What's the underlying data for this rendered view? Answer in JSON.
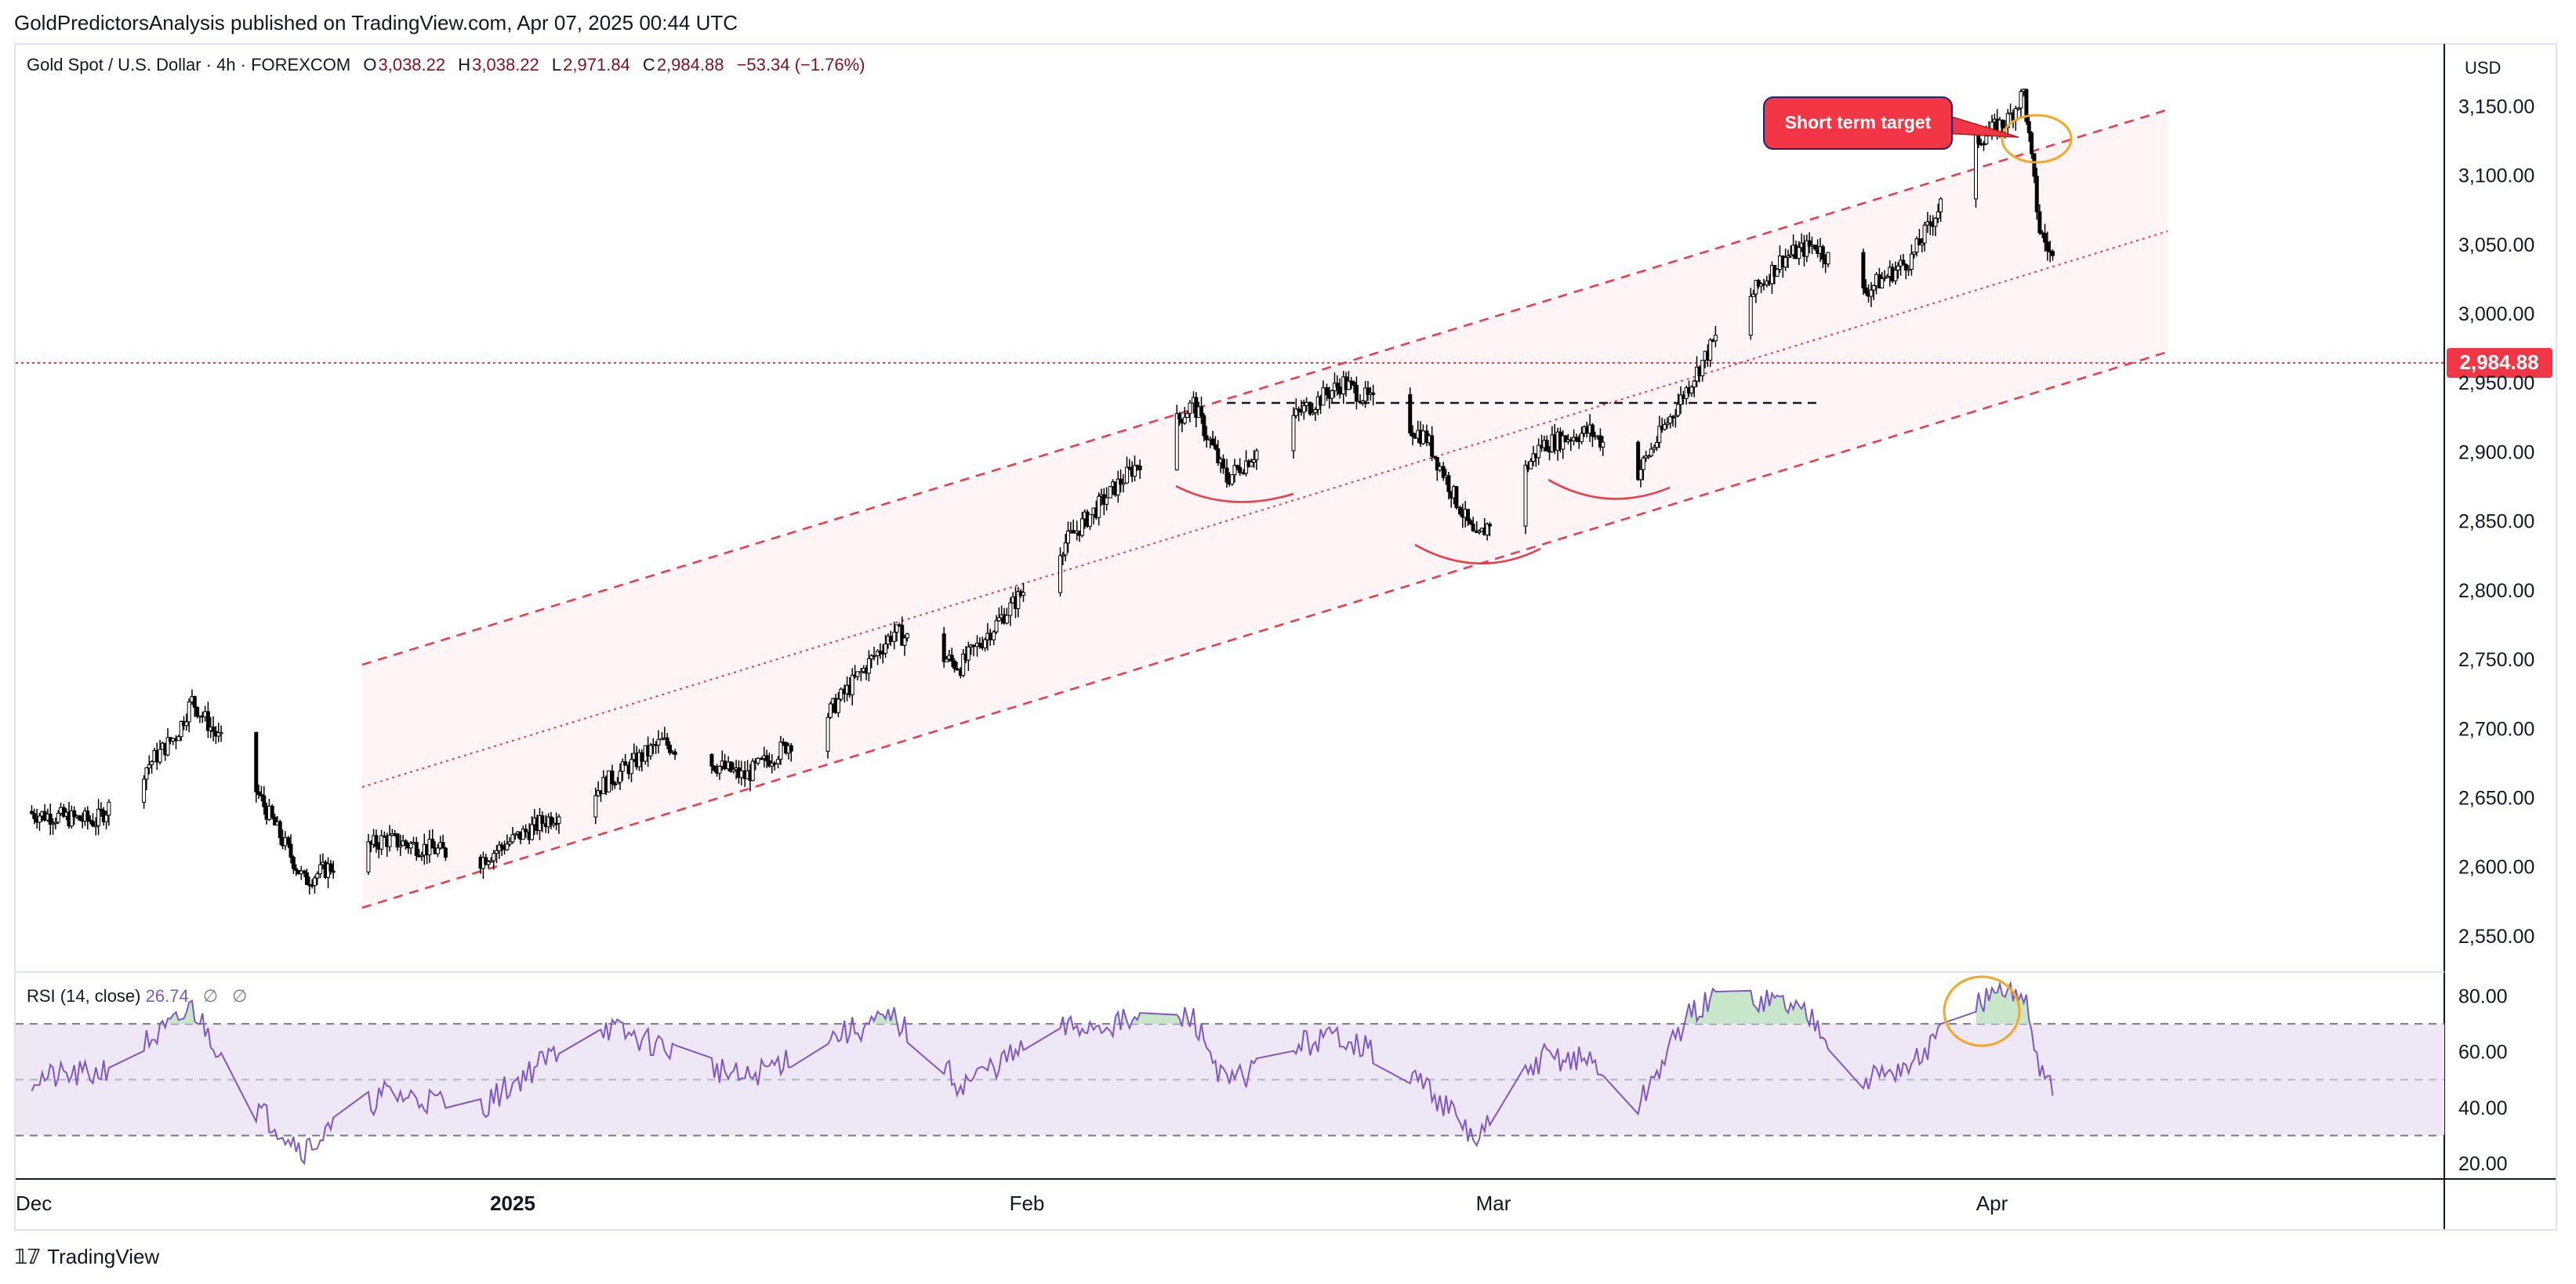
{
  "publisher": "GoldPredictorsAnalysis published on TradingView.com, Apr 07, 2025 00:44 UTC",
  "brand": "TradingView",
  "legend": {
    "symbol": "Gold Spot / U.S. Dollar · 4h · FOREXCOM",
    "open_label": "O",
    "open": "3,038.22",
    "high_label": "H",
    "high": "3,038.22",
    "low_label": "L",
    "low": "2,971.84",
    "close_label": "C",
    "close": "2,984.88",
    "change": "−53.34 (−1.76%)"
  },
  "currency": "USD",
  "rsi_legend": {
    "label": "RSI (14, close)",
    "value": "26.74",
    "na1": "∅",
    "na2": "∅"
  },
  "colors": {
    "accent_red": "#f23645",
    "candle": "#000000",
    "rsi_line": "#7e57c2",
    "rsi_band": "#ede7f6",
    "rsi_overbought_fill": "#c8e6c9",
    "highlight_circle": "#f5a623",
    "channel_fill": "#fff5f6"
  },
  "chart_data": [
    {
      "type": "candlestick",
      "title": "Gold Spot / U.S. Dollar · 4h · FOREXCOM",
      "ylabel": "USD",
      "ylim": [
        2525,
        3195
      ],
      "y_ticks": [
        "3,150.00",
        "3,100.00",
        "3,050.00",
        "3,000.00",
        "2,950.00",
        "2,900.00",
        "2,850.00",
        "2,800.00",
        "2,750.00",
        "2,700.00",
        "2,650.00",
        "2,600.00",
        "2,550.00"
      ],
      "x_ticks": [
        "Dec",
        "2025",
        "Feb",
        "Mar",
        "Apr"
      ],
      "last_price_label": "2,984.88",
      "annotations": [
        "Short term target"
      ],
      "approx_close_path": [
        {
          "date": "2024-12-01",
          "close": 2640
        },
        {
          "date": "2024-12-06",
          "close": 2633
        },
        {
          "date": "2024-12-11",
          "close": 2695
        },
        {
          "date": "2024-12-12",
          "close": 2720
        },
        {
          "date": "2024-12-16",
          "close": 2655
        },
        {
          "date": "2024-12-19",
          "close": 2590
        },
        {
          "date": "2024-12-24",
          "close": 2620
        },
        {
          "date": "2024-12-30",
          "close": 2605
        },
        {
          "date": "2025-01-06",
          "close": 2655
        },
        {
          "date": "2025-01-10",
          "close": 2690
        },
        {
          "date": "2025-01-15",
          "close": 2665
        },
        {
          "date": "2025-01-20",
          "close": 2710
        },
        {
          "date": "2025-01-24",
          "close": 2770
        },
        {
          "date": "2025-01-28",
          "close": 2745
        },
        {
          "date": "2025-02-03",
          "close": 2830
        },
        {
          "date": "2025-02-06",
          "close": 2870
        },
        {
          "date": "2025-02-11",
          "close": 2935
        },
        {
          "date": "2025-02-13",
          "close": 2880
        },
        {
          "date": "2025-02-17",
          "close": 2925
        },
        {
          "date": "2025-02-20",
          "close": 2950
        },
        {
          "date": "2025-02-25",
          "close": 2910
        },
        {
          "date": "2025-02-28",
          "close": 2835
        },
        {
          "date": "2025-03-04",
          "close": 2905
        },
        {
          "date": "2025-03-07",
          "close": 2915
        },
        {
          "date": "2025-03-10",
          "close": 2885
        },
        {
          "date": "2025-03-13",
          "close": 2945
        },
        {
          "date": "2025-03-15",
          "close": 2985
        },
        {
          "date": "2025-03-19",
          "close": 3040
        },
        {
          "date": "2025-03-21",
          "close": 3050
        },
        {
          "date": "2025-03-24",
          "close": 3015
        },
        {
          "date": "2025-03-27",
          "close": 3040
        },
        {
          "date": "2025-03-31",
          "close": 3125
        },
        {
          "date": "2025-04-02",
          "close": 3140
        },
        {
          "date": "2025-04-03",
          "close": 3160
        },
        {
          "date": "2025-04-04",
          "close": 3060
        },
        {
          "date": "2025-04-07",
          "close": 2984.88
        }
      ]
    },
    {
      "type": "line",
      "title": "RSI (14, close)",
      "ylim": [
        15,
        88
      ],
      "y_ticks": [
        "80.00",
        "60.00",
        "40.00",
        "20.00"
      ],
      "bands": [
        70,
        50,
        30
      ],
      "approx_values": [
        {
          "date": "2024-12-01",
          "value": 50
        },
        {
          "date": "2024-12-06",
          "value": 52
        },
        {
          "date": "2024-12-11",
          "value": 70
        },
        {
          "date": "2024-12-12",
          "value": 76
        },
        {
          "date": "2024-12-16",
          "value": 40
        },
        {
          "date": "2024-12-19",
          "value": 25
        },
        {
          "date": "2024-12-24",
          "value": 45
        },
        {
          "date": "2024-12-30",
          "value": 40
        },
        {
          "date": "2025-01-06",
          "value": 70
        },
        {
          "date": "2025-01-10",
          "value": 62
        },
        {
          "date": "2025-01-15",
          "value": 50
        },
        {
          "date": "2025-01-20",
          "value": 65
        },
        {
          "date": "2025-01-24",
          "value": 72
        },
        {
          "date": "2025-01-28",
          "value": 48
        },
        {
          "date": "2025-02-03",
          "value": 68
        },
        {
          "date": "2025-02-06",
          "value": 70
        },
        {
          "date": "2025-02-11",
          "value": 72
        },
        {
          "date": "2025-02-13",
          "value": 48
        },
        {
          "date": "2025-02-17",
          "value": 62
        },
        {
          "date": "2025-02-20",
          "value": 66
        },
        {
          "date": "2025-02-25",
          "value": 48
        },
        {
          "date": "2025-02-28",
          "value": 28
        },
        {
          "date": "2025-03-04",
          "value": 58
        },
        {
          "date": "2025-03-07",
          "value": 57
        },
        {
          "date": "2025-03-10",
          "value": 40
        },
        {
          "date": "2025-03-13",
          "value": 72
        },
        {
          "date": "2025-03-15",
          "value": 80
        },
        {
          "date": "2025-03-19",
          "value": 78
        },
        {
          "date": "2025-03-21",
          "value": 72
        },
        {
          "date": "2025-03-24",
          "value": 50
        },
        {
          "date": "2025-03-27",
          "value": 55
        },
        {
          "date": "2025-03-31",
          "value": 78
        },
        {
          "date": "2025-04-02",
          "value": 80
        },
        {
          "date": "2025-04-03",
          "value": 82
        },
        {
          "date": "2025-04-04",
          "value": 55
        },
        {
          "date": "2025-04-07",
          "value": 26.74
        }
      ]
    }
  ]
}
